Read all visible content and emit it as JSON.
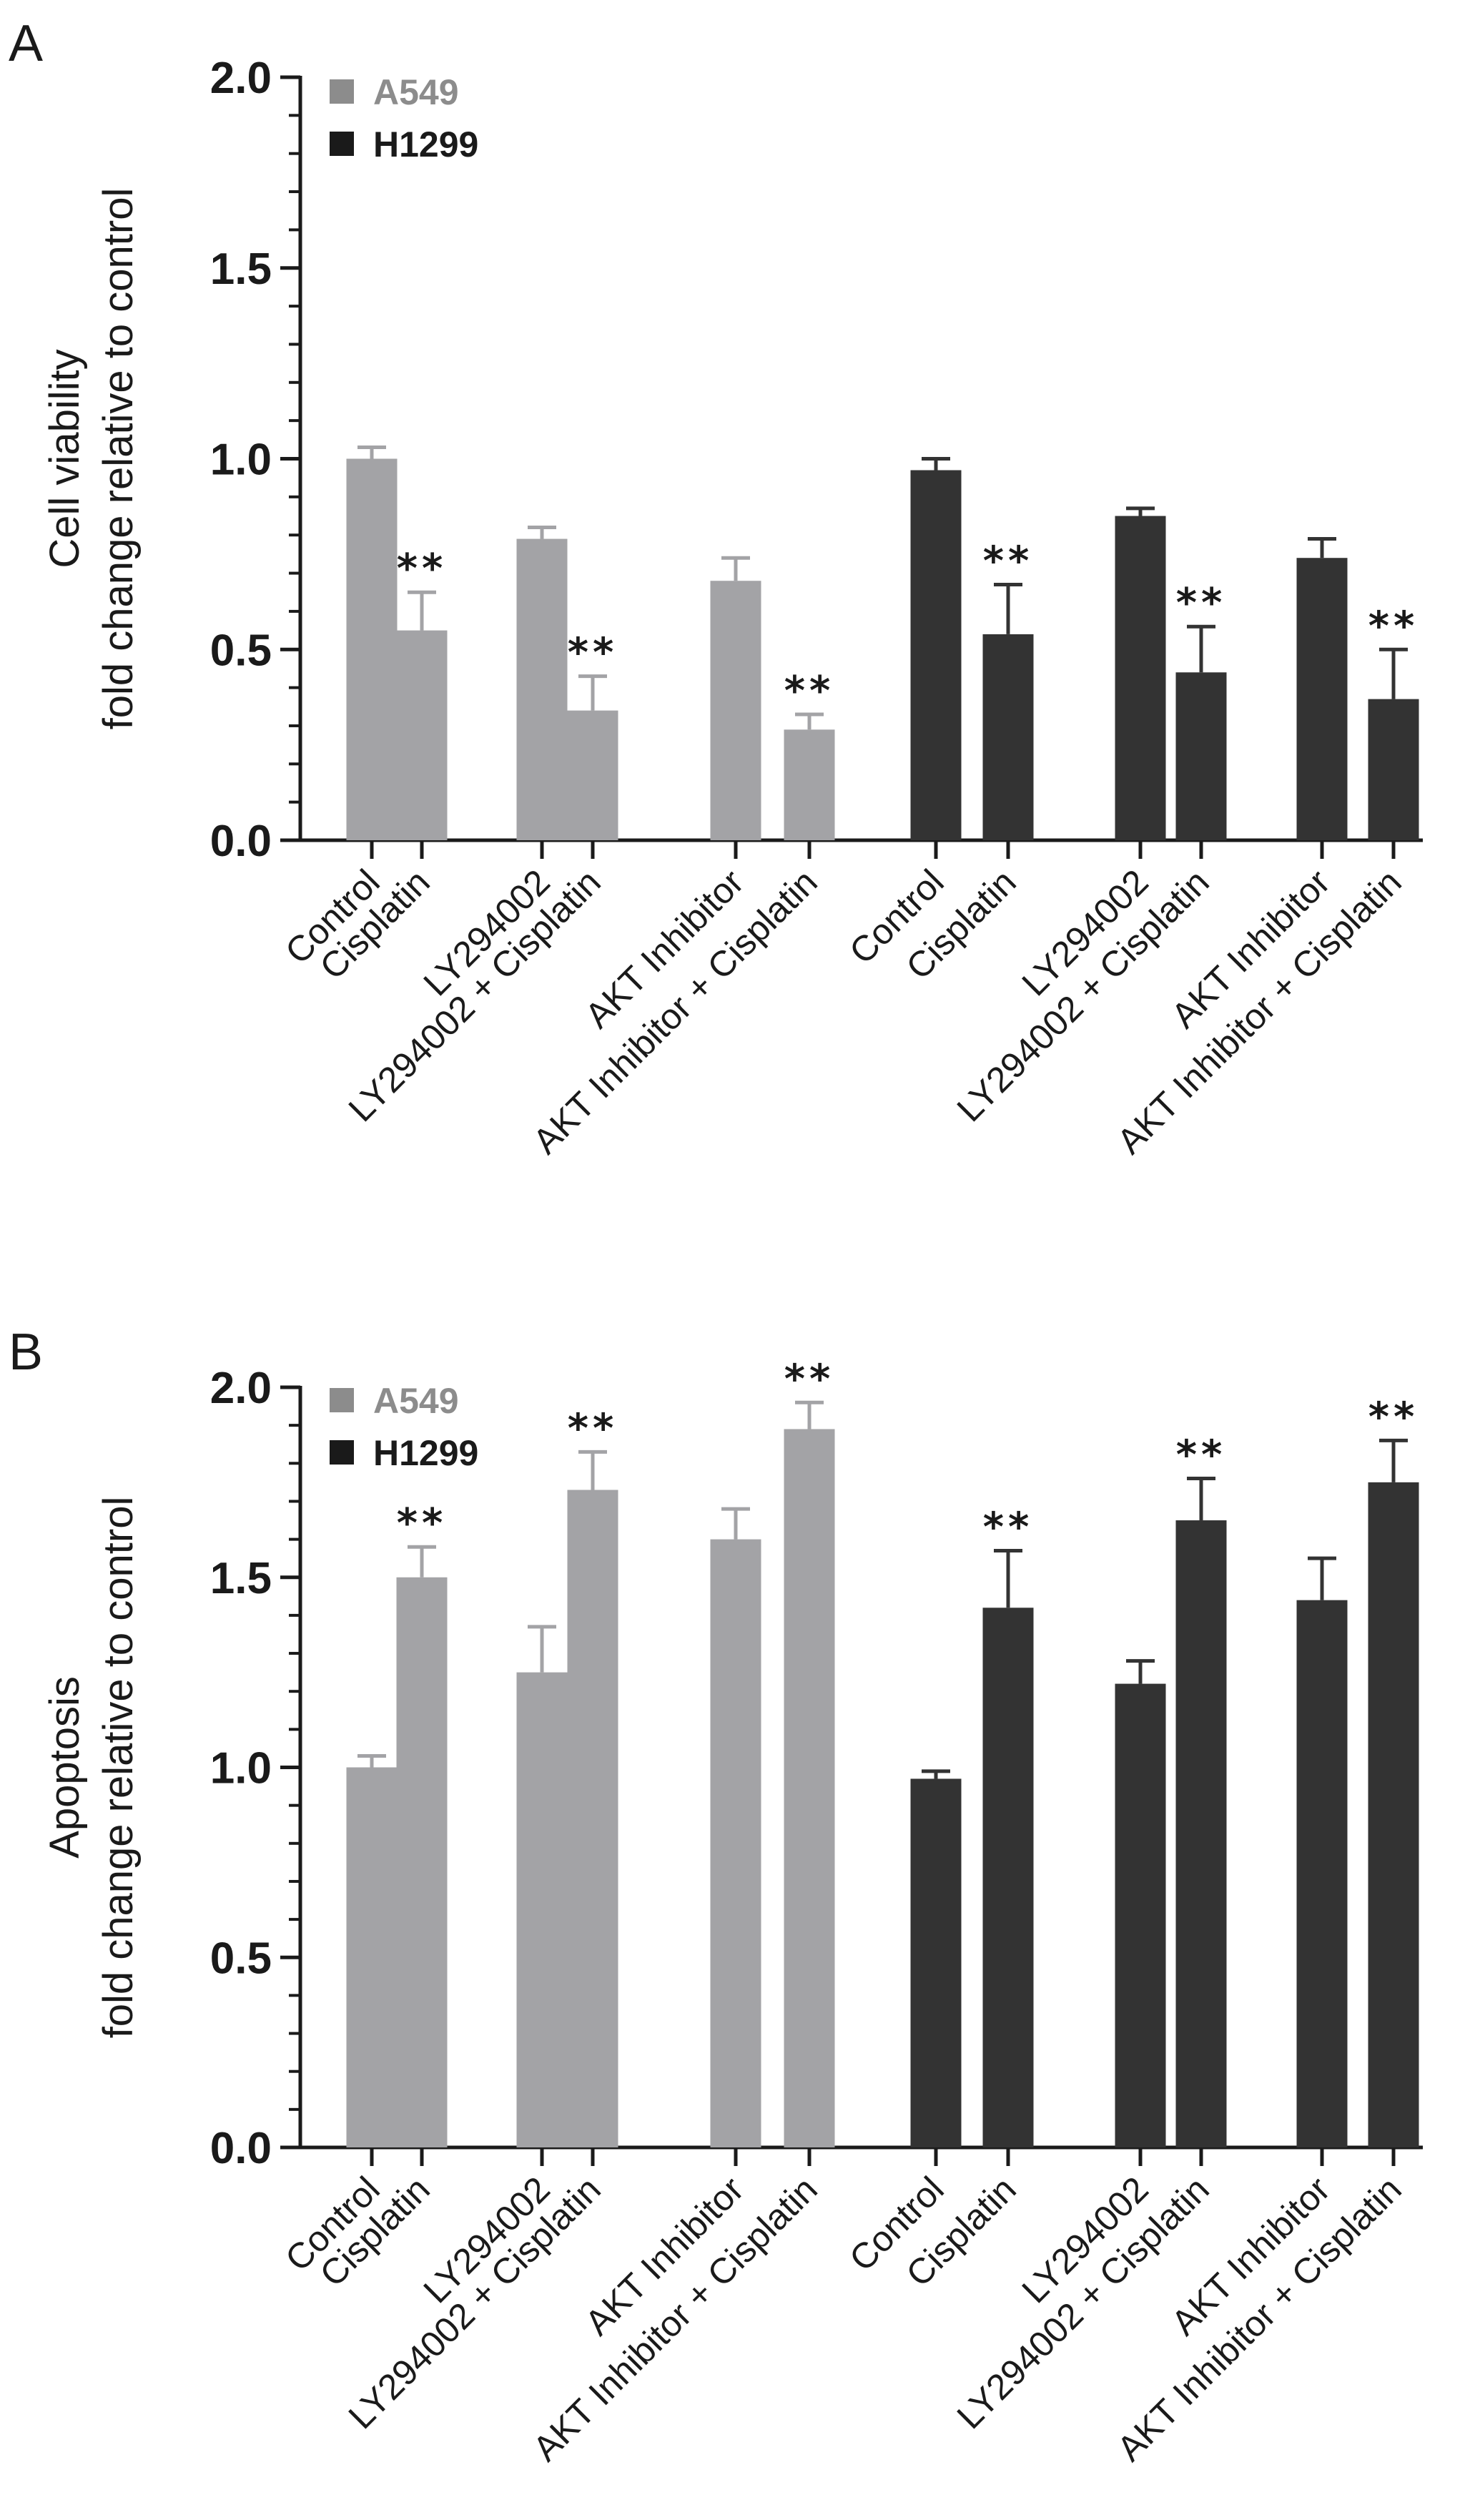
{
  "chart_data": [
    {
      "panel": "A",
      "type": "bar",
      "ylabel_line1": "Cell viability",
      "ylabel_line2": "fold change relative to control",
      "ylim": [
        0,
        2.0
      ],
      "yticks": [
        "0.0",
        "0.5",
        "1.0",
        "1.5",
        "2.0"
      ],
      "legend": [
        {
          "name": "A549",
          "color": "#8c8c8c"
        },
        {
          "name": "H1299",
          "color": "#1a1a1a"
        }
      ],
      "groups": [
        {
          "series": "A549",
          "color": "#a3a3a6",
          "bars": [
            {
              "label": "Control",
              "value": 1.0,
              "error": 0.03,
              "sig": ""
            },
            {
              "label": "Cisplatin",
              "value": 0.55,
              "error": 0.1,
              "sig": "**"
            },
            {
              "label": "LY294002",
              "value": 0.79,
              "error": 0.03,
              "sig": ""
            },
            {
              "label": "LY294002 + Cisplatin",
              "value": 0.34,
              "error": 0.09,
              "sig": "**"
            },
            {
              "label": "AKT Inhibitor",
              "value": 0.68,
              "error": 0.06,
              "sig": ""
            },
            {
              "label": "AKT Inhibitor + Cisplatin",
              "value": 0.29,
              "error": 0.04,
              "sig": "**"
            }
          ]
        },
        {
          "series": "H1299",
          "color": "#333333",
          "bars": [
            {
              "label": "Control",
              "value": 0.97,
              "error": 0.03,
              "sig": ""
            },
            {
              "label": "Cisplatin",
              "value": 0.54,
              "error": 0.13,
              "sig": "**"
            },
            {
              "label": "LY294002",
              "value": 0.85,
              "error": 0.02,
              "sig": ""
            },
            {
              "label": "LY294002 + Cisplatin",
              "value": 0.44,
              "error": 0.12,
              "sig": "**"
            },
            {
              "label": "AKT Inhibitor",
              "value": 0.74,
              "error": 0.05,
              "sig": ""
            },
            {
              "label": "AKT Inhibitor + Cisplatin",
              "value": 0.37,
              "error": 0.13,
              "sig": "**"
            }
          ]
        }
      ]
    },
    {
      "panel": "B",
      "type": "bar",
      "ylabel_line1": "Apoptosis",
      "ylabel_line2": "fold change relative to control",
      "ylim": [
        0,
        2.0
      ],
      "yticks": [
        "0.0",
        "0.5",
        "1.0",
        "1.5",
        "2.0"
      ],
      "legend": [
        {
          "name": "A549",
          "color": "#8c8c8c"
        },
        {
          "name": "H1299",
          "color": "#1a1a1a"
        }
      ],
      "groups": [
        {
          "series": "A549",
          "color": "#a3a3a6",
          "bars": [
            {
              "label": "Control",
              "value": 1.0,
              "error": 0.03,
              "sig": ""
            },
            {
              "label": "Cisplatin",
              "value": 1.5,
              "error": 0.08,
              "sig": "**"
            },
            {
              "label": "LY294002",
              "value": 1.25,
              "error": 0.12,
              "sig": ""
            },
            {
              "label": "LY294002 + Cisplatin",
              "value": 1.73,
              "error": 0.1,
              "sig": "**"
            },
            {
              "label": "AKT Inhibitor",
              "value": 1.6,
              "error": 0.08,
              "sig": ""
            },
            {
              "label": "AKT Inhibitor + Cisplatin",
              "value": 1.89,
              "error": 0.07,
              "sig": "**"
            }
          ]
        },
        {
          "series": "H1299",
          "color": "#333333",
          "bars": [
            {
              "label": "Control",
              "value": 0.97,
              "error": 0.02,
              "sig": ""
            },
            {
              "label": "Cisplatin",
              "value": 1.42,
              "error": 0.15,
              "sig": "**"
            },
            {
              "label": "LY294002",
              "value": 1.22,
              "error": 0.06,
              "sig": ""
            },
            {
              "label": "LY294002 + Cisplatin",
              "value": 1.65,
              "error": 0.11,
              "sig": "**"
            },
            {
              "label": "AKT Inhibitor",
              "value": 1.44,
              "error": 0.11,
              "sig": ""
            },
            {
              "label": "AKT Inhibitor + Cisplatin",
              "value": 1.75,
              "error": 0.11,
              "sig": "**"
            }
          ]
        }
      ]
    }
  ]
}
